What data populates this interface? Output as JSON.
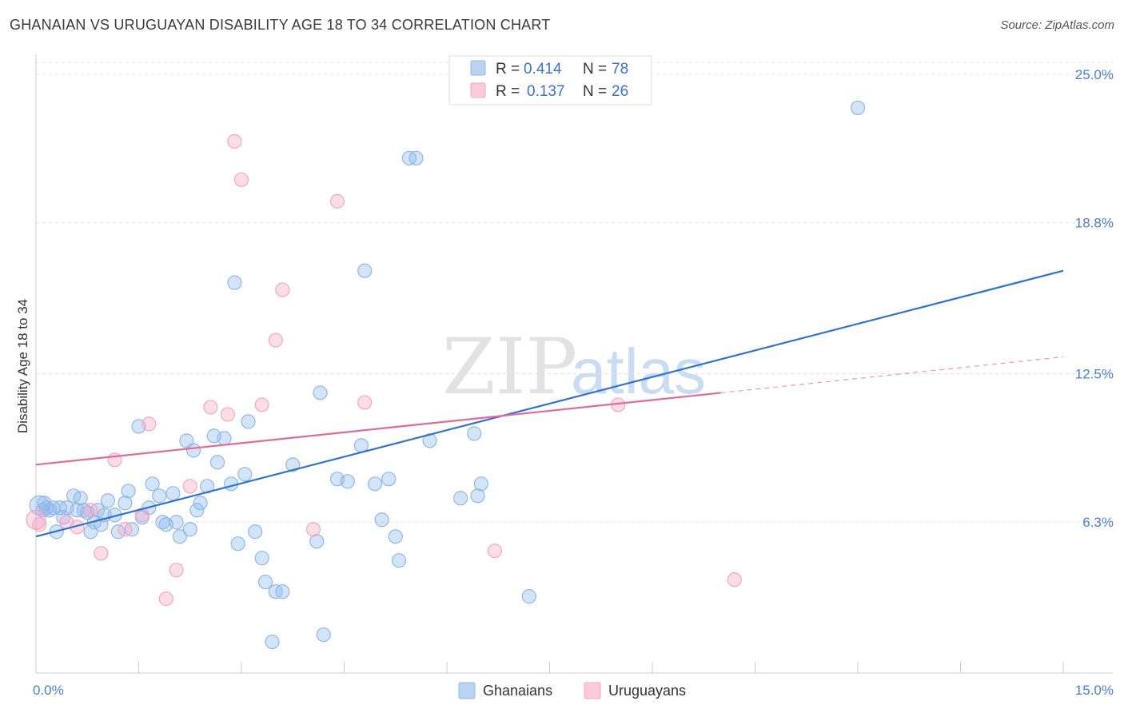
{
  "title": "GHANAIAN VS URUGUAYAN DISABILITY AGE 18 TO 34 CORRELATION CHART",
  "source": "Source: ZipAtlas.com",
  "watermark": {
    "zip": "ZIP",
    "atlas": "atlas"
  },
  "chart_data": {
    "type": "scatter",
    "title": "GHANAIAN VS URUGUAYAN DISABILITY AGE 18 TO 34 CORRELATION CHART",
    "xlabel": "",
    "ylabel": "Disability Age 18 to 34",
    "xlim": [
      0,
      15
    ],
    "ylim": [
      0,
      25.5
    ],
    "x_tick_labels": [
      {
        "value": 0,
        "label": "0.0%"
      },
      {
        "value": 15,
        "label": "15.0%"
      }
    ],
    "y_ticks": [
      {
        "value": 6.3,
        "label": "6.3%"
      },
      {
        "value": 12.5,
        "label": "12.5%"
      },
      {
        "value": 18.8,
        "label": "18.8%"
      },
      {
        "value": 25.0,
        "label": "25.0%"
      }
    ],
    "grid": true,
    "legend_position": "top-center",
    "series": [
      {
        "name": "Ghanaians",
        "color": "#8fb8ea",
        "line_color": "#2f72d0",
        "R": "0.414",
        "N": "78",
        "trend": {
          "x0": 0.0,
          "y0": 5.7,
          "x1": 15.0,
          "y1": 16.8,
          "dashed_from": null
        },
        "points": [
          [
            0.05,
            7.0
          ],
          [
            0.1,
            6.8
          ],
          [
            0.12,
            7.1
          ],
          [
            0.15,
            6.9
          ],
          [
            0.2,
            6.8
          ],
          [
            0.25,
            6.9
          ],
          [
            0.3,
            5.9
          ],
          [
            0.35,
            6.9
          ],
          [
            0.4,
            6.5
          ],
          [
            0.45,
            6.9
          ],
          [
            0.55,
            7.4
          ],
          [
            0.6,
            6.8
          ],
          [
            0.65,
            7.3
          ],
          [
            0.7,
            6.8
          ],
          [
            0.75,
            6.7
          ],
          [
            0.8,
            5.9
          ],
          [
            0.85,
            6.3
          ],
          [
            0.9,
            6.8
          ],
          [
            0.95,
            6.2
          ],
          [
            1.0,
            6.6
          ],
          [
            1.05,
            7.2
          ],
          [
            1.15,
            6.6
          ],
          [
            1.2,
            5.9
          ],
          [
            1.3,
            7.1
          ],
          [
            1.35,
            7.6
          ],
          [
            1.4,
            6.0
          ],
          [
            1.5,
            10.3
          ],
          [
            1.55,
            6.5
          ],
          [
            1.65,
            6.9
          ],
          [
            1.7,
            7.9
          ],
          [
            1.8,
            7.4
          ],
          [
            1.85,
            6.3
          ],
          [
            1.9,
            6.2
          ],
          [
            2.0,
            7.5
          ],
          [
            2.05,
            6.3
          ],
          [
            2.1,
            5.7
          ],
          [
            2.2,
            9.7
          ],
          [
            2.25,
            6.0
          ],
          [
            2.3,
            9.3
          ],
          [
            2.35,
            6.8
          ],
          [
            2.4,
            7.1
          ],
          [
            2.5,
            7.8
          ],
          [
            2.6,
            9.9
          ],
          [
            2.65,
            8.8
          ],
          [
            2.75,
            9.8
          ],
          [
            2.85,
            7.9
          ],
          [
            2.9,
            16.3
          ],
          [
            2.95,
            5.4
          ],
          [
            3.05,
            8.3
          ],
          [
            3.1,
            10.5
          ],
          [
            3.2,
            5.9
          ],
          [
            3.3,
            4.8
          ],
          [
            3.35,
            3.8
          ],
          [
            3.45,
            1.3
          ],
          [
            3.5,
            3.4
          ],
          [
            3.6,
            3.4
          ],
          [
            3.75,
            8.7
          ],
          [
            4.1,
            5.5
          ],
          [
            4.15,
            11.7
          ],
          [
            4.2,
            1.6
          ],
          [
            4.4,
            8.1
          ],
          [
            4.55,
            8.0
          ],
          [
            4.75,
            9.5
          ],
          [
            4.8,
            16.8
          ],
          [
            4.95,
            7.9
          ],
          [
            5.05,
            6.4
          ],
          [
            5.15,
            8.1
          ],
          [
            5.25,
            5.7
          ],
          [
            5.3,
            4.7
          ],
          [
            5.45,
            21.5
          ],
          [
            5.55,
            21.5
          ],
          [
            5.75,
            9.7
          ],
          [
            6.2,
            7.3
          ],
          [
            6.4,
            10.0
          ],
          [
            6.45,
            7.4
          ],
          [
            6.5,
            7.9
          ],
          [
            7.2,
            3.2
          ],
          [
            12.0,
            23.6
          ]
        ]
      },
      {
        "name": "Uruguayans",
        "color": "#f4a6c2",
        "line_color": "#e06a98",
        "R": "0.137",
        "N": "26",
        "trend": {
          "x0": 0.0,
          "y0": 8.7,
          "x1": 15.0,
          "y1": 13.2,
          "dashed_from": 10.0
        },
        "points": [
          [
            0.05,
            6.2
          ],
          [
            0.45,
            6.3
          ],
          [
            0.6,
            6.1
          ],
          [
            0.8,
            6.8
          ],
          [
            0.95,
            5.0
          ],
          [
            1.15,
            8.9
          ],
          [
            1.3,
            6.0
          ],
          [
            1.55,
            6.6
          ],
          [
            1.65,
            10.4
          ],
          [
            1.9,
            3.1
          ],
          [
            2.05,
            4.3
          ],
          [
            2.25,
            7.8
          ],
          [
            2.55,
            11.1
          ],
          [
            2.8,
            10.8
          ],
          [
            2.9,
            22.2
          ],
          [
            3.0,
            20.6
          ],
          [
            3.3,
            11.2
          ],
          [
            3.5,
            13.9
          ],
          [
            3.6,
            16.0
          ],
          [
            4.05,
            6.0
          ],
          [
            4.4,
            19.7
          ],
          [
            4.8,
            11.3
          ],
          [
            6.7,
            5.1
          ],
          [
            8.5,
            11.2
          ],
          [
            10.2,
            3.9
          ],
          [
            0.0,
            6.4
          ]
        ]
      }
    ]
  }
}
